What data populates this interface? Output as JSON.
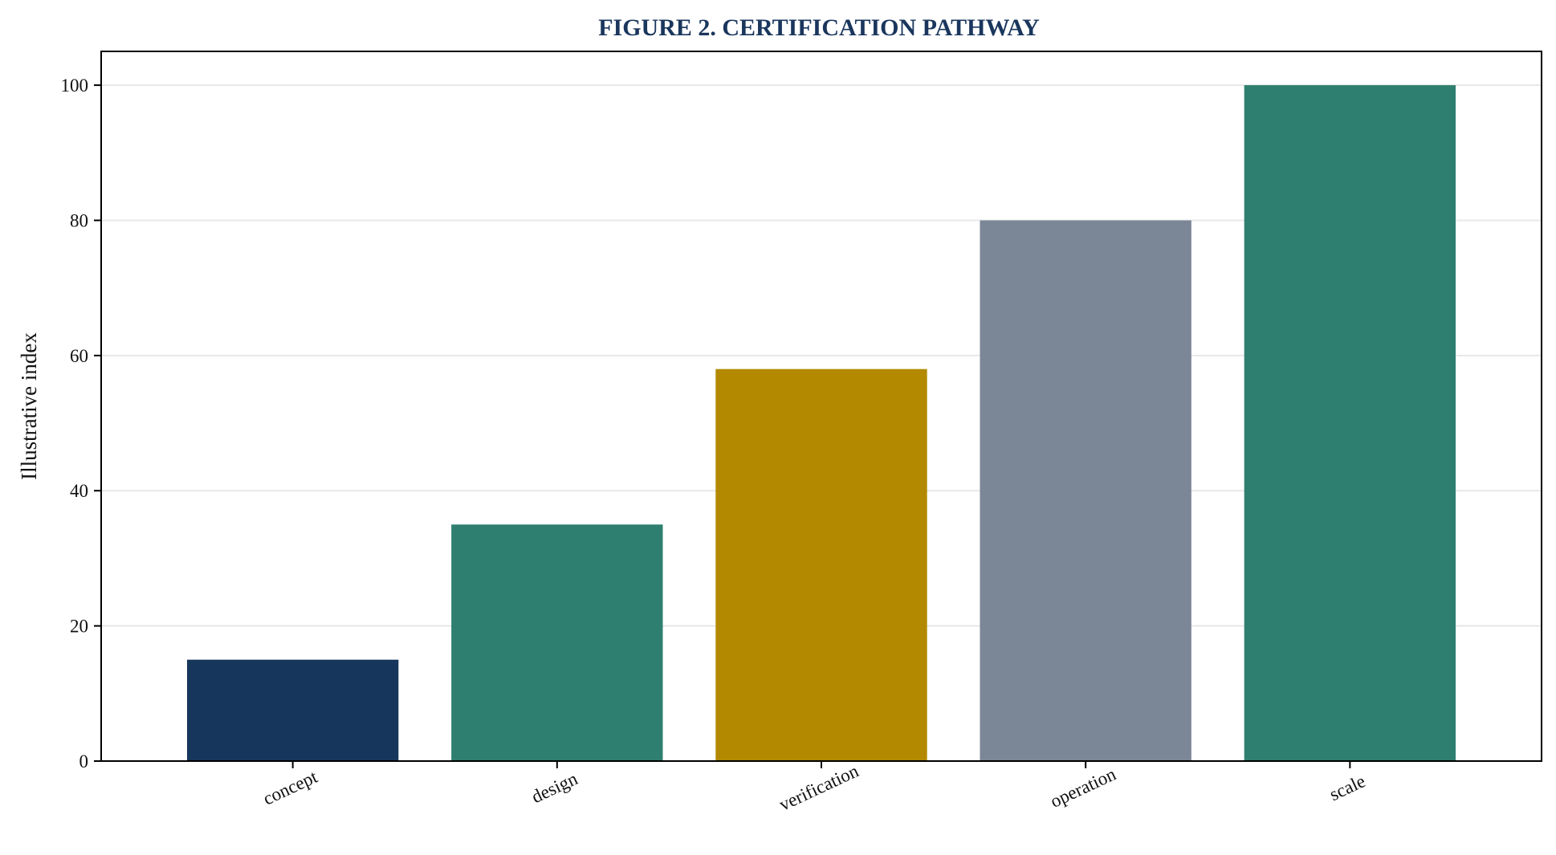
{
  "chart_data": {
    "type": "bar",
    "title": "FIGURE 2. CERTIFICATION PATHWAY",
    "xlabel": "",
    "ylabel": "Illustrative index",
    "categories": [
      "concept",
      "design",
      "verification",
      "operation",
      "scale"
    ],
    "values": [
      15,
      35,
      58,
      80,
      100
    ],
    "bar_colors": [
      "#17365c",
      "#2e7f6f",
      "#b38900",
      "#7b8796",
      "#2e7f6f"
    ],
    "ylim": [
      0,
      105
    ],
    "yticks": [
      0,
      20,
      40,
      60,
      80,
      100
    ],
    "grid": "horizontal",
    "grid_color": "#e8e8e8",
    "title_color": "#1a365d",
    "legend": "none",
    "xtick_rotation_deg": -25
  }
}
